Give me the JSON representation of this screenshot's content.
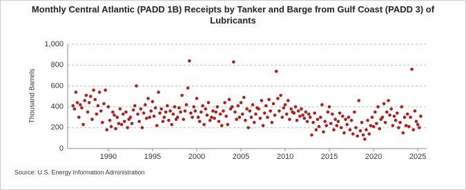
{
  "chart_data": {
    "type": "scatter",
    "title": "Monthly Central Atlantic (PADD 1B) Receipts by Tanker and Barge from Gulf Coast (PADD 3) of Lubricants",
    "y_label": "Thousand Barrels",
    "source": "Source: U.S. Energy Information Administration",
    "color": "#b31b1b",
    "grid": true,
    "xlim": [
      1985.4,
      2026
    ],
    "xticks": [
      1990,
      1995,
      2000,
      2005,
      2010,
      2015,
      2020,
      2025
    ],
    "ylim": [
      0,
      1000
    ],
    "yticks": [
      0,
      200,
      400,
      600,
      800,
      {
        "value": 1000,
        "label": "1,000"
      }
    ],
    "x": [
      1986.0,
      1986.17,
      1986.33,
      1986.5,
      1986.67,
      1986.83,
      1987.0,
      1987.17,
      1987.33,
      1987.5,
      1987.67,
      1987.83,
      1988.0,
      1988.17,
      1988.33,
      1988.5,
      1988.67,
      1988.83,
      1989.0,
      1989.17,
      1989.33,
      1989.5,
      1989.67,
      1989.83,
      1990.0,
      1990.17,
      1990.33,
      1990.5,
      1990.67,
      1990.83,
      1991.0,
      1991.17,
      1991.33,
      1991.5,
      1991.67,
      1991.83,
      1992.0,
      1992.17,
      1992.33,
      1992.5,
      1992.67,
      1992.83,
      1993.0,
      1993.17,
      1993.33,
      1993.5,
      1993.67,
      1993.83,
      1994.0,
      1994.17,
      1994.33,
      1994.5,
      1994.67,
      1994.83,
      1995.0,
      1995.17,
      1995.33,
      1995.5,
      1995.67,
      1995.83,
      1996.0,
      1996.17,
      1996.33,
      1996.5,
      1996.67,
      1996.83,
      1997.0,
      1997.17,
      1997.33,
      1997.5,
      1997.67,
      1997.83,
      1998.0,
      1998.17,
      1998.33,
      1998.5,
      1998.67,
      1998.83,
      1999.0,
      1999.17,
      1999.33,
      1999.5,
      1999.67,
      1999.83,
      2000.0,
      2000.17,
      2000.33,
      2000.5,
      2000.67,
      2000.83,
      2001.0,
      2001.17,
      2001.33,
      2001.5,
      2001.67,
      2001.83,
      2002.0,
      2002.17,
      2002.33,
      2002.5,
      2002.67,
      2002.83,
      2003.0,
      2003.17,
      2003.33,
      2003.5,
      2003.67,
      2003.83,
      2004.0,
      2004.17,
      2004.33,
      2004.5,
      2004.67,
      2004.83,
      2005.0,
      2005.17,
      2005.33,
      2005.5,
      2005.67,
      2005.83,
      2006.0,
      2006.17,
      2006.33,
      2006.5,
      2006.67,
      2006.83,
      2007.0,
      2007.17,
      2007.33,
      2007.5,
      2007.67,
      2007.83,
      2008.0,
      2008.17,
      2008.33,
      2008.5,
      2008.67,
      2008.83,
      2009.0,
      2009.17,
      2009.33,
      2009.5,
      2009.67,
      2009.83,
      2010.0,
      2010.17,
      2010.33,
      2010.5,
      2010.67,
      2010.83,
      2011.0,
      2011.17,
      2011.33,
      2011.5,
      2011.67,
      2011.83,
      2012.0,
      2012.17,
      2012.33,
      2012.5,
      2012.67,
      2012.83,
      2013.0,
      2013.17,
      2013.33,
      2013.5,
      2013.67,
      2013.83,
      2014.0,
      2014.17,
      2014.33,
      2014.5,
      2014.67,
      2014.83,
      2015.0,
      2015.17,
      2015.33,
      2015.5,
      2015.67,
      2015.83,
      2016.0,
      2016.17,
      2016.33,
      2016.5,
      2016.67,
      2016.83,
      2017.0,
      2017.17,
      2017.33,
      2017.5,
      2017.67,
      2017.83,
      2018.0,
      2018.17,
      2018.33,
      2018.5,
      2018.67,
      2018.83,
      2019.0,
      2019.17,
      2019.33,
      2019.5,
      2019.67,
      2019.83,
      2020.0,
      2020.17,
      2020.33,
      2020.5,
      2020.67,
      2020.83,
      2021.0,
      2021.17,
      2021.33,
      2021.5,
      2021.67,
      2021.83,
      2022.0,
      2022.17,
      2022.33,
      2022.5,
      2022.67,
      2022.83,
      2023.0,
      2023.17,
      2023.33,
      2023.5,
      2023.67,
      2023.83,
      2024.0,
      2024.17,
      2024.33,
      2024.5,
      2024.67,
      2024.83,
      2025.0,
      2025.17,
      2025.33
    ],
    "values": [
      410,
      380,
      540,
      440,
      300,
      420,
      390,
      230,
      460,
      510,
      350,
      440,
      500,
      280,
      560,
      470,
      330,
      410,
      540,
      360,
      250,
      430,
      560,
      180,
      400,
      270,
      210,
      350,
      320,
      190,
      300,
      240,
      380,
      230,
      330,
      260,
      350,
      200,
      280,
      300,
      240,
      370,
      410,
      600,
      330,
      260,
      380,
      200,
      340,
      420,
      290,
      480,
      300,
      360,
      450,
      310,
      390,
      220,
      540,
      340,
      380,
      260,
      300,
      350,
      410,
      270,
      360,
      230,
      330,
      400,
      280,
      300,
      390,
      350,
      510,
      280,
      360,
      420,
      580,
      840,
      340,
      300,
      400,
      360,
      480,
      300,
      260,
      350,
      410,
      230,
      380,
      320,
      440,
      270,
      300,
      360,
      290,
      350,
      400,
      260,
      330,
      220,
      360,
      440,
      310,
      230,
      470,
      380,
      400,
      830,
      350,
      280,
      410,
      300,
      440,
      330,
      490,
      270,
      380,
      200,
      360,
      300,
      420,
      250,
      330,
      390,
      380,
      290,
      460,
      220,
      340,
      410,
      300,
      470,
      360,
      250,
      430,
      320,
      740,
      480,
      360,
      510,
      300,
      390,
      420,
      330,
      460,
      280,
      380,
      350,
      340,
      400,
      270,
      360,
      310,
      380,
      320,
      290,
      350,
      260,
      330,
      300,
      130,
      250,
      340,
      180,
      280,
      210,
      300,
      420,
      160,
      260,
      220,
      350,
      400,
      240,
      330,
      180,
      280,
      220,
      260,
      340,
      200,
      310,
      150,
      280,
      230,
      300,
      180,
      270,
      140,
      350,
      200,
      120,
      460,
      170,
      250,
      130,
      90,
      180,
      270,
      140,
      220,
      300,
      210,
      350,
      240,
      400,
      190,
      280,
      300,
      430,
      250,
      350,
      460,
      320,
      380,
      220,
      310,
      270,
      340,
      200,
      250,
      400,
      150,
      300,
      220,
      330,
      210,
      300,
      760,
      180,
      360,
      260,
      230,
      200,
      310
    ]
  }
}
